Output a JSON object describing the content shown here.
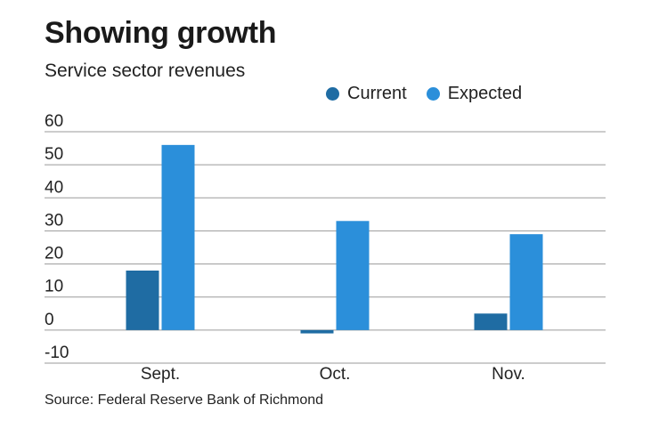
{
  "header": {
    "title": "Showing growth",
    "subtitle": "Service sector revenues"
  },
  "footer": {
    "source": "Source: Federal Reserve Bank of Richmond"
  },
  "colors": {
    "current": "#1f6ca3",
    "expected": "#2b8fda",
    "grid": "#9a9a9a"
  },
  "chart_data": {
    "type": "bar",
    "title": "Showing growth",
    "subtitle": "Service sector revenues",
    "categories": [
      "Sept.",
      "Oct.",
      "Nov."
    ],
    "series": [
      {
        "name": "Current",
        "values": [
          18,
          -1,
          5
        ]
      },
      {
        "name": "Expected",
        "values": [
          56,
          33,
          29
        ]
      }
    ],
    "yticks": [
      "60",
      "50",
      "40",
      "30",
      "20",
      "10",
      "0",
      "-10"
    ],
    "ylim": [
      -10,
      60
    ],
    "grid": true,
    "legend": "top"
  }
}
